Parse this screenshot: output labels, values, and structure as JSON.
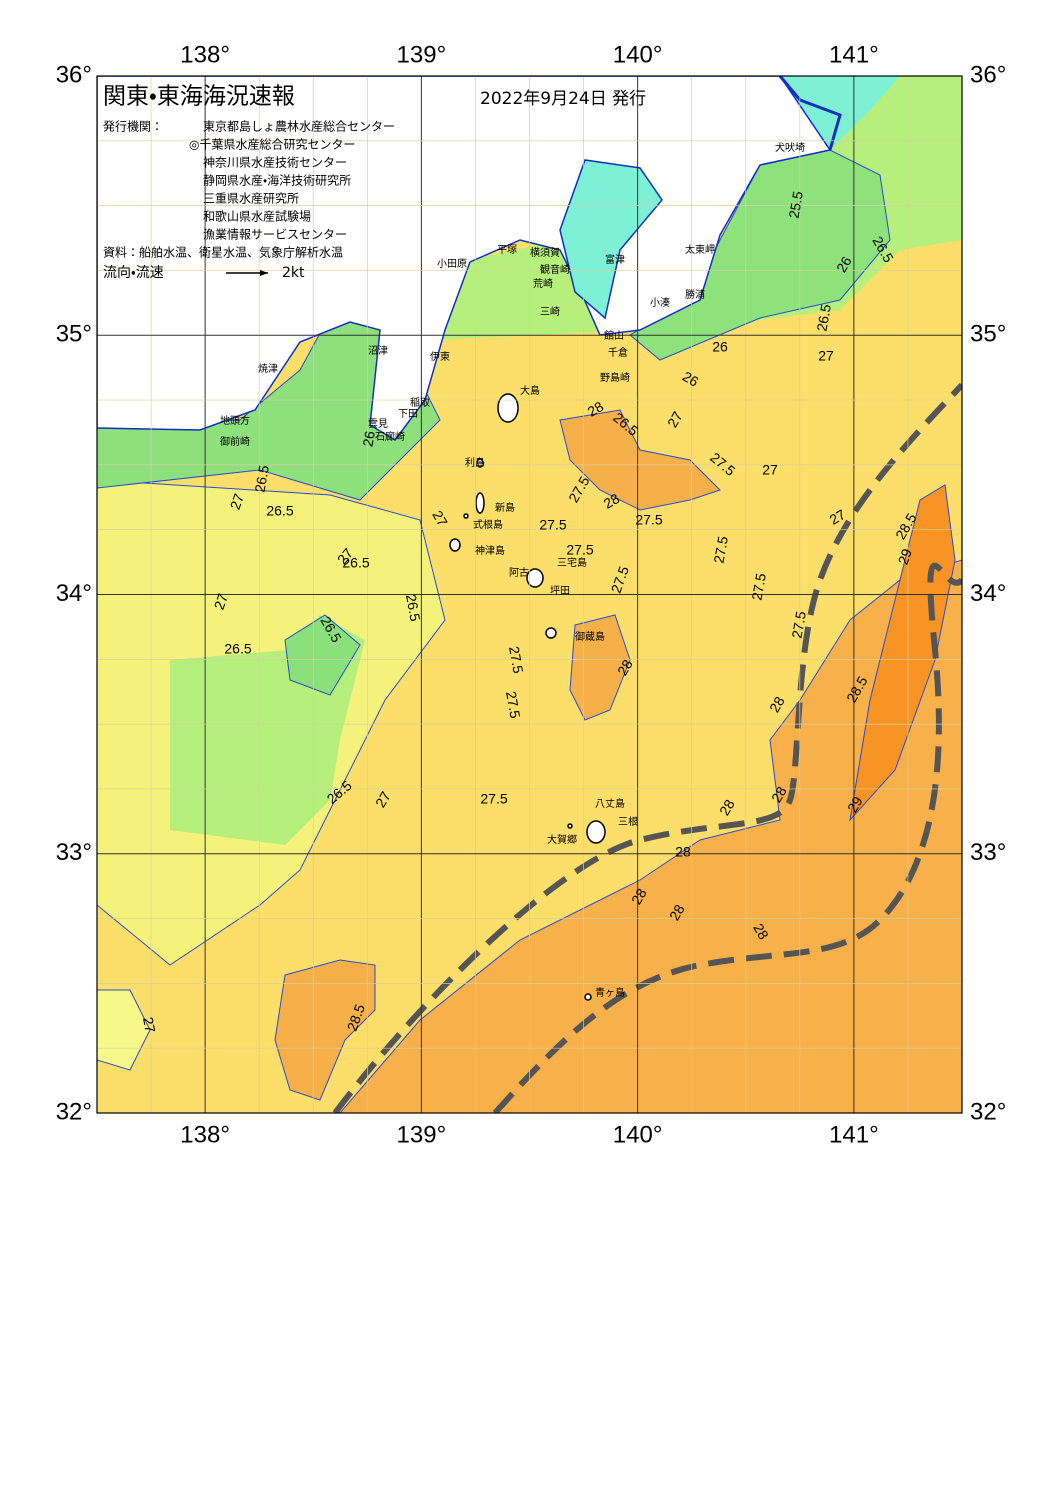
{
  "header": {
    "title": "関東・東海海況速報",
    "date": "2022年9月24日 発行"
  },
  "info": {
    "publisher_label": "発行機関：",
    "publishers": [
      "東京都島しょ農林水産総合センター",
      "◎千葉県水産総合研究センター",
      "神奈川県水産技術センター",
      "静岡県水産・海洋技術研究所",
      "三重県水産研究所",
      "和歌山県水産試験場",
      "漁業情報サービスセンター"
    ],
    "source": "資料：船舶水温、衛星水温、気象庁解析水温",
    "legend_label": "流向・流速",
    "legend_speed": "2kt"
  },
  "axes": {
    "longitudes": [
      "138°",
      "139°",
      "140°",
      "141°"
    ],
    "latitudes": [
      "36°",
      "35°",
      "34°",
      "33°",
      "32°"
    ]
  },
  "places": [
    "犬吠埼",
    "太東岬",
    "勝浦",
    "小湊",
    "富津",
    "横須賀",
    "観音崎",
    "荒崎",
    "三崎",
    "館山",
    "千倉",
    "野島崎",
    "平塚",
    "小田原",
    "伊東",
    "沼津",
    "焼津",
    "稲取",
    "下田",
    "雲見",
    "石廊崎",
    "地頭方",
    "御前崎",
    "大島",
    "利島",
    "新島",
    "式根島",
    "神津島",
    "三宅島",
    "阿古",
    "坪田",
    "御蔵島",
    "八丈島",
    "三根",
    "大賀郷",
    "青ヶ島"
  ],
  "contour_labels": [
    "25.5",
    "26",
    "26.5",
    "26.5",
    "26",
    "27",
    "26",
    "27",
    "26.5",
    "27",
    "27.5",
    "28",
    "27.5",
    "28",
    "27.5",
    "27",
    "27.5",
    "27.5",
    "27.5",
    "27.5",
    "27",
    "26.5",
    "26",
    "26.5",
    "27",
    "27",
    "26.5",
    "26.5",
    "26.5",
    "26.5",
    "27",
    "27.5",
    "27.5",
    "27.5",
    "28",
    "28",
    "28",
    "28.5",
    "29",
    "28.5",
    "29",
    "28",
    "28",
    "28",
    "28",
    "28",
    "27.5",
    "28.5",
    "27",
    "27.5",
    "26.5",
    "27"
  ]
}
